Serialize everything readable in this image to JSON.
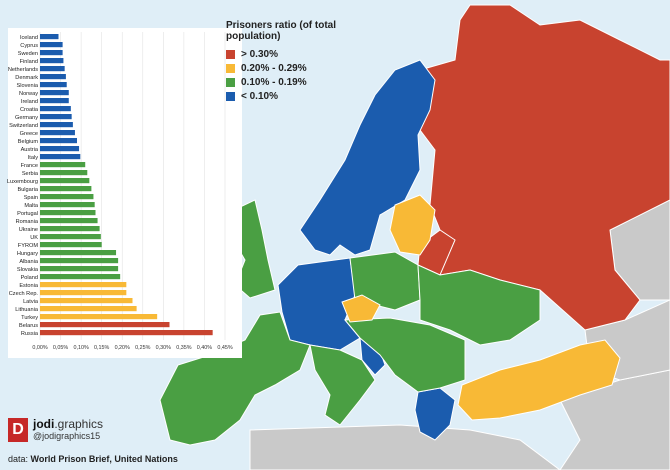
{
  "colors": {
    "sea": "#dfeef7",
    "land_other": "#c9c9c9",
    "above_0_30": "#c8432f",
    "from_0_20_to_0_29": "#f8b936",
    "from_0_10_to_0_19": "#4a9f43",
    "below_0_10": "#1b5cae",
    "border": "#ffffff"
  },
  "legend": {
    "title": "Prisoners ratio (of total population)",
    "items": [
      {
        "label": "> 0.30%",
        "color": "#c8432f"
      },
      {
        "label": "0.20% - 0.29%",
        "color": "#f8b936"
      },
      {
        "label": "0.10% - 0.19%",
        "color": "#4a9f43"
      },
      {
        "label": "< 0.10%",
        "color": "#1b5cae"
      }
    ]
  },
  "chart_data": {
    "type": "bar",
    "orientation": "horizontal",
    "title": "",
    "xlabel": "",
    "ylabel": "",
    "xlim": [
      0,
      0.45
    ],
    "ticks": [
      "0,00%",
      "0,05%",
      "0,10%",
      "0,15%",
      "0,20%",
      "0,25%",
      "0,30%",
      "0,35%",
      "0,40%",
      "0,45%"
    ],
    "categories": [
      "Iceland",
      "Cyprus",
      "Sweden",
      "Finland",
      "Netherlands",
      "Denmark",
      "Slovenia",
      "Norway",
      "Ireland",
      "Croatia",
      "Germany",
      "Switzerland",
      "Greece",
      "Belgium",
      "Austria",
      "Italy",
      "France",
      "Serbia",
      "Luxembourg",
      "Bulgaria",
      "Spain",
      "Malta",
      "Portugal",
      "Romania",
      "Ukraine",
      "UK",
      "FYROM",
      "Hungary",
      "Albania",
      "Slovakia",
      "Poland",
      "Estonia",
      "Czech Rep.",
      "Latvia",
      "Lithuania",
      "Turkey",
      "Belarus",
      "Russia"
    ],
    "values": [
      0.045,
      0.055,
      0.055,
      0.057,
      0.06,
      0.063,
      0.065,
      0.07,
      0.07,
      0.075,
      0.077,
      0.08,
      0.085,
      0.09,
      0.095,
      0.098,
      0.11,
      0.115,
      0.12,
      0.125,
      0.13,
      0.133,
      0.135,
      0.14,
      0.145,
      0.148,
      0.15,
      0.185,
      0.19,
      0.19,
      0.195,
      0.21,
      0.21,
      0.225,
      0.235,
      0.285,
      0.315,
      0.42
    ]
  },
  "branding": {
    "logo_letter": "D",
    "name_bold": "jodi",
    "name_light": ".graphics",
    "handle": "@jodigraphics15"
  },
  "source": {
    "prefix": "data: ",
    "text": "World Prison Brief, United Nations"
  }
}
